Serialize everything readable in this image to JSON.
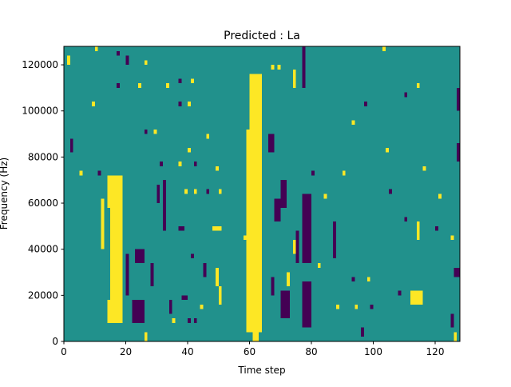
{
  "chart_data": {
    "type": "heatmap",
    "title": "Predicted : La",
    "xlabel": "Time step",
    "ylabel": "Frequency (Hz)",
    "xlim": [
      0,
      128
    ],
    "ylim": [
      0,
      128000
    ],
    "n_time": 128,
    "n_freq_bins": 64,
    "freq_bin_hz": 2000,
    "xticks": [
      "0",
      "20",
      "40",
      "60",
      "80",
      "100",
      "120"
    ],
    "xtick_values": [
      0,
      20,
      40,
      60,
      80,
      100,
      120
    ],
    "yticks": [
      "0",
      "20000",
      "40000",
      "60000",
      "80000",
      "100000",
      "120000"
    ],
    "ytick_values": [
      0,
      20000,
      40000,
      60000,
      80000,
      100000,
      120000
    ],
    "classes": {
      "0": "background",
      "1": "high",
      "-1": "low"
    },
    "colors": {
      "0": "#21918c",
      "1": "#fde725",
      "-1": "#440154"
    },
    "segments_note": "[time_start, time_end, bin_start, bin_end, class] (approximate)",
    "segments": [
      [
        59,
        63,
        2,
        45,
        1
      ],
      [
        60,
        63,
        45,
        57,
        1
      ],
      [
        61,
        62,
        0,
        2,
        1
      ],
      [
        14,
        18,
        29,
        35,
        1
      ],
      [
        15,
        18,
        8,
        29,
        1
      ],
      [
        14,
        18,
        4,
        8,
        1
      ],
      [
        77,
        79,
        17,
        31,
        -1
      ],
      [
        77,
        79,
        3,
        12,
        -1
      ],
      [
        70,
        72,
        5,
        10,
        -1
      ],
      [
        112,
        115,
        8,
        10,
        1
      ],
      [
        126,
        127,
        14,
        15,
        -1
      ],
      [
        127,
        127,
        39,
        42,
        -1
      ],
      [
        127,
        127,
        50,
        54,
        -1
      ],
      [
        22,
        25,
        4,
        8,
        -1
      ],
      [
        23,
        25,
        17,
        19,
        -1
      ],
      [
        1,
        1,
        60,
        61,
        1
      ],
      [
        10,
        10,
        63,
        63,
        1
      ],
      [
        17,
        17,
        62,
        62,
        -1
      ],
      [
        20,
        20,
        60,
        61,
        -1
      ],
      [
        26,
        26,
        60,
        60,
        1
      ],
      [
        17,
        17,
        55,
        55,
        -1
      ],
      [
        24,
        24,
        55,
        55,
        1
      ],
      [
        9,
        9,
        51,
        51,
        1
      ],
      [
        37,
        37,
        51,
        51,
        -1
      ],
      [
        40,
        40,
        51,
        51,
        1
      ],
      [
        33,
        33,
        55,
        55,
        1
      ],
      [
        37,
        37,
        56,
        56,
        -1
      ],
      [
        41,
        41,
        56,
        56,
        1
      ],
      [
        29,
        29,
        45,
        45,
        1
      ],
      [
        26,
        26,
        45,
        45,
        -1
      ],
      [
        40,
        40,
        41,
        41,
        1
      ],
      [
        46,
        46,
        44,
        44,
        1
      ],
      [
        2,
        2,
        41,
        43,
        -1
      ],
      [
        5,
        5,
        36,
        36,
        1
      ],
      [
        11,
        11,
        36,
        36,
        -1
      ],
      [
        31,
        31,
        38,
        38,
        -1
      ],
      [
        37,
        37,
        38,
        38,
        1
      ],
      [
        42,
        42,
        38,
        38,
        -1
      ],
      [
        49,
        49,
        37,
        37,
        1
      ],
      [
        39,
        39,
        32,
        32,
        1
      ],
      [
        42,
        42,
        32,
        32,
        1
      ],
      [
        46,
        46,
        32,
        32,
        -1
      ],
      [
        50,
        50,
        32,
        32,
        1
      ],
      [
        32,
        32,
        24,
        34,
        -1
      ],
      [
        37,
        38,
        24,
        24,
        -1
      ],
      [
        48,
        50,
        24,
        24,
        1
      ],
      [
        58,
        58,
        22,
        22,
        1
      ],
      [
        41,
        41,
        18,
        18,
        -1
      ],
      [
        49,
        49,
        12,
        15,
        1
      ],
      [
        50,
        50,
        8,
        11,
        1
      ],
      [
        44,
        44,
        7,
        7,
        1
      ],
      [
        38,
        39,
        9,
        9,
        -1
      ],
      [
        34,
        34,
        6,
        8,
        -1
      ],
      [
        35,
        35,
        4,
        4,
        1
      ],
      [
        40,
        40,
        4,
        4,
        -1
      ],
      [
        42,
        42,
        4,
        4,
        -1
      ],
      [
        26,
        26,
        0,
        1,
        1
      ],
      [
        84,
        84,
        31,
        31,
        1
      ],
      [
        80,
        80,
        36,
        36,
        -1
      ],
      [
        90,
        90,
        36,
        36,
        1
      ],
      [
        87,
        87,
        18,
        25,
        -1
      ],
      [
        82,
        82,
        16,
        16,
        1
      ],
      [
        93,
        93,
        47,
        47,
        1
      ],
      [
        97,
        97,
        51,
        51,
        -1
      ],
      [
        104,
        104,
        41,
        41,
        1
      ],
      [
        103,
        103,
        63,
        63,
        1
      ],
      [
        114,
        114,
        55,
        55,
        1
      ],
      [
        110,
        110,
        53,
        53,
        -1
      ],
      [
        116,
        116,
        37,
        37,
        1
      ],
      [
        121,
        121,
        31,
        31,
        1
      ],
      [
        105,
        105,
        32,
        32,
        -1
      ],
      [
        110,
        110,
        26,
        26,
        -1
      ],
      [
        114,
        114,
        22,
        25,
        1
      ],
      [
        120,
        120,
        24,
        24,
        -1
      ],
      [
        125,
        125,
        22,
        22,
        1
      ],
      [
        93,
        93,
        13,
        13,
        -1
      ],
      [
        98,
        98,
        13,
        13,
        1
      ],
      [
        108,
        108,
        10,
        10,
        -1
      ],
      [
        88,
        88,
        7,
        7,
        1
      ],
      [
        94,
        94,
        7,
        7,
        1
      ],
      [
        99,
        99,
        7,
        7,
        -1
      ],
      [
        96,
        96,
        1,
        2,
        -1
      ],
      [
        126,
        126,
        0,
        1,
        1
      ],
      [
        125,
        125,
        3,
        5,
        -1
      ],
      [
        66,
        67,
        41,
        44,
        -1
      ],
      [
        67,
        67,
        59,
        59,
        1
      ],
      [
        69,
        69,
        59,
        59,
        1
      ],
      [
        77,
        77,
        55,
        63,
        -1
      ],
      [
        74,
        74,
        55,
        58,
        1
      ],
      [
        68,
        69,
        26,
        30,
        -1
      ],
      [
        70,
        71,
        29,
        34,
        -1
      ],
      [
        67,
        67,
        10,
        13,
        -1
      ],
      [
        72,
        72,
        12,
        14,
        1
      ],
      [
        75,
        75,
        17,
        23,
        -1
      ],
      [
        74,
        74,
        19,
        21,
        1
      ],
      [
        12,
        12,
        20,
        30,
        1
      ],
      [
        20,
        20,
        10,
        18,
        -1
      ],
      [
        28,
        28,
        12,
        16,
        -1
      ],
      [
        30,
        30,
        30,
        33,
        -1
      ],
      [
        45,
        45,
        14,
        16,
        -1
      ]
    ]
  }
}
